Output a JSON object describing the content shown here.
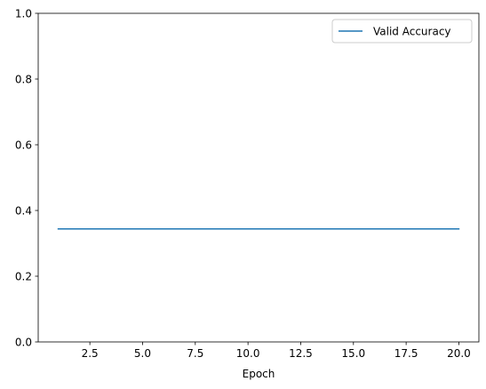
{
  "chart_data": {
    "type": "line",
    "title": "",
    "xlabel": "Epoch",
    "ylabel": "",
    "xlim": [
      0.05,
      20.95
    ],
    "ylim": [
      0,
      1
    ],
    "xticks": [
      2.5,
      5.0,
      7.5,
      10.0,
      12.5,
      15.0,
      17.5,
      20.0
    ],
    "xtick_labels": [
      "2.5",
      "5.0",
      "7.5",
      "10.0",
      "12.5",
      "15.0",
      "17.5",
      "20.0"
    ],
    "yticks": [
      0.0,
      0.2,
      0.4,
      0.6,
      0.8,
      1.0
    ],
    "ytick_labels": [
      "0.0",
      "0.2",
      "0.4",
      "0.6",
      "0.8",
      "1.0"
    ],
    "grid": false,
    "legend_position": "upper right",
    "series": [
      {
        "name": "Valid Accuracy",
        "color": "#1f77b4",
        "x": [
          1,
          2,
          3,
          4,
          5,
          6,
          7,
          8,
          9,
          10,
          11,
          12,
          13,
          14,
          15,
          16,
          17,
          18,
          19,
          20
        ],
        "y": [
          0.344,
          0.344,
          0.344,
          0.344,
          0.344,
          0.344,
          0.344,
          0.344,
          0.344,
          0.344,
          0.344,
          0.344,
          0.344,
          0.344,
          0.344,
          0.344,
          0.344,
          0.344,
          0.344,
          0.344
        ]
      }
    ]
  }
}
